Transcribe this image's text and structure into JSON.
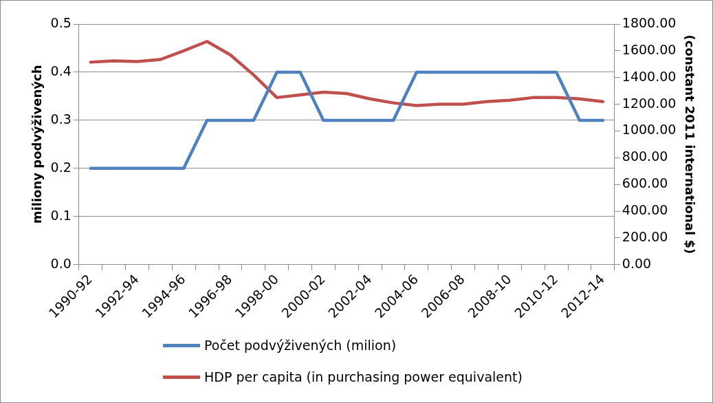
{
  "chart_data": {
    "type": "line",
    "categories": [
      "1990-92",
      null,
      "1992-94",
      null,
      "1994-96",
      null,
      "1996-98",
      null,
      "1998-00",
      null,
      "2000-02",
      null,
      "2002-04",
      null,
      "2004-06",
      null,
      "2006-08",
      null,
      "2008-10",
      null,
      "2010-12",
      null,
      "2012-14"
    ],
    "series": [
      {
        "name": "Počet podvýživených (milion)",
        "color": "#4f81bd",
        "values": [
          0.2,
          0.2,
          0.2,
          0.2,
          0.2,
          0.3,
          0.3,
          0.3,
          0.4,
          0.4,
          0.3,
          0.3,
          0.3,
          0.3,
          0.4,
          0.4,
          0.4,
          0.4,
          0.4,
          0.4,
          0.4,
          0.3,
          0.3
        ]
      },
      {
        "name": "HDP per capita (in purchasing power equivalent)",
        "color": "#c0504d",
        "axis": "y2",
        "values": [
          1515,
          1525,
          1520,
          1535,
          1600,
          1670,
          1570,
          1420,
          1250,
          1270,
          1290,
          1280,
          1240,
          1210,
          1190,
          1200,
          1200,
          1220,
          1230,
          1250,
          1250,
          1240,
          1220
        ]
      }
    ],
    "ylabel": "miliony podvýživených",
    "y2label": "(constant 2011 international $)",
    "ylim": [
      0,
      0.5
    ],
    "yticks": [
      {
        "value": 0,
        "label": "0.0"
      },
      {
        "value": 0.1,
        "label": "0.1"
      },
      {
        "value": 0.2,
        "label": "0.2"
      },
      {
        "value": 0.3,
        "label": "0.3"
      },
      {
        "value": 0.4,
        "label": "0.4"
      },
      {
        "value": 0.5,
        "label": "0.5"
      }
    ],
    "y2lim": [
      0,
      1800
    ],
    "y2ticks": [
      {
        "value": 0,
        "label": "0.00"
      },
      {
        "value": 200,
        "label": "200.00"
      },
      {
        "value": 400,
        "label": "400.00"
      },
      {
        "value": 600,
        "label": "600.00"
      },
      {
        "value": 800,
        "label": "800.00"
      },
      {
        "value": 1000,
        "label": "1000.00"
      },
      {
        "value": 1200,
        "label": "1200.00"
      },
      {
        "value": 1400,
        "label": "1400.00"
      },
      {
        "value": 1600,
        "label": "1600.00"
      },
      {
        "value": 1800,
        "label": "1800.00"
      }
    ],
    "grid": "y",
    "legend": "bottom",
    "marker": "none",
    "line_style": "solid"
  }
}
